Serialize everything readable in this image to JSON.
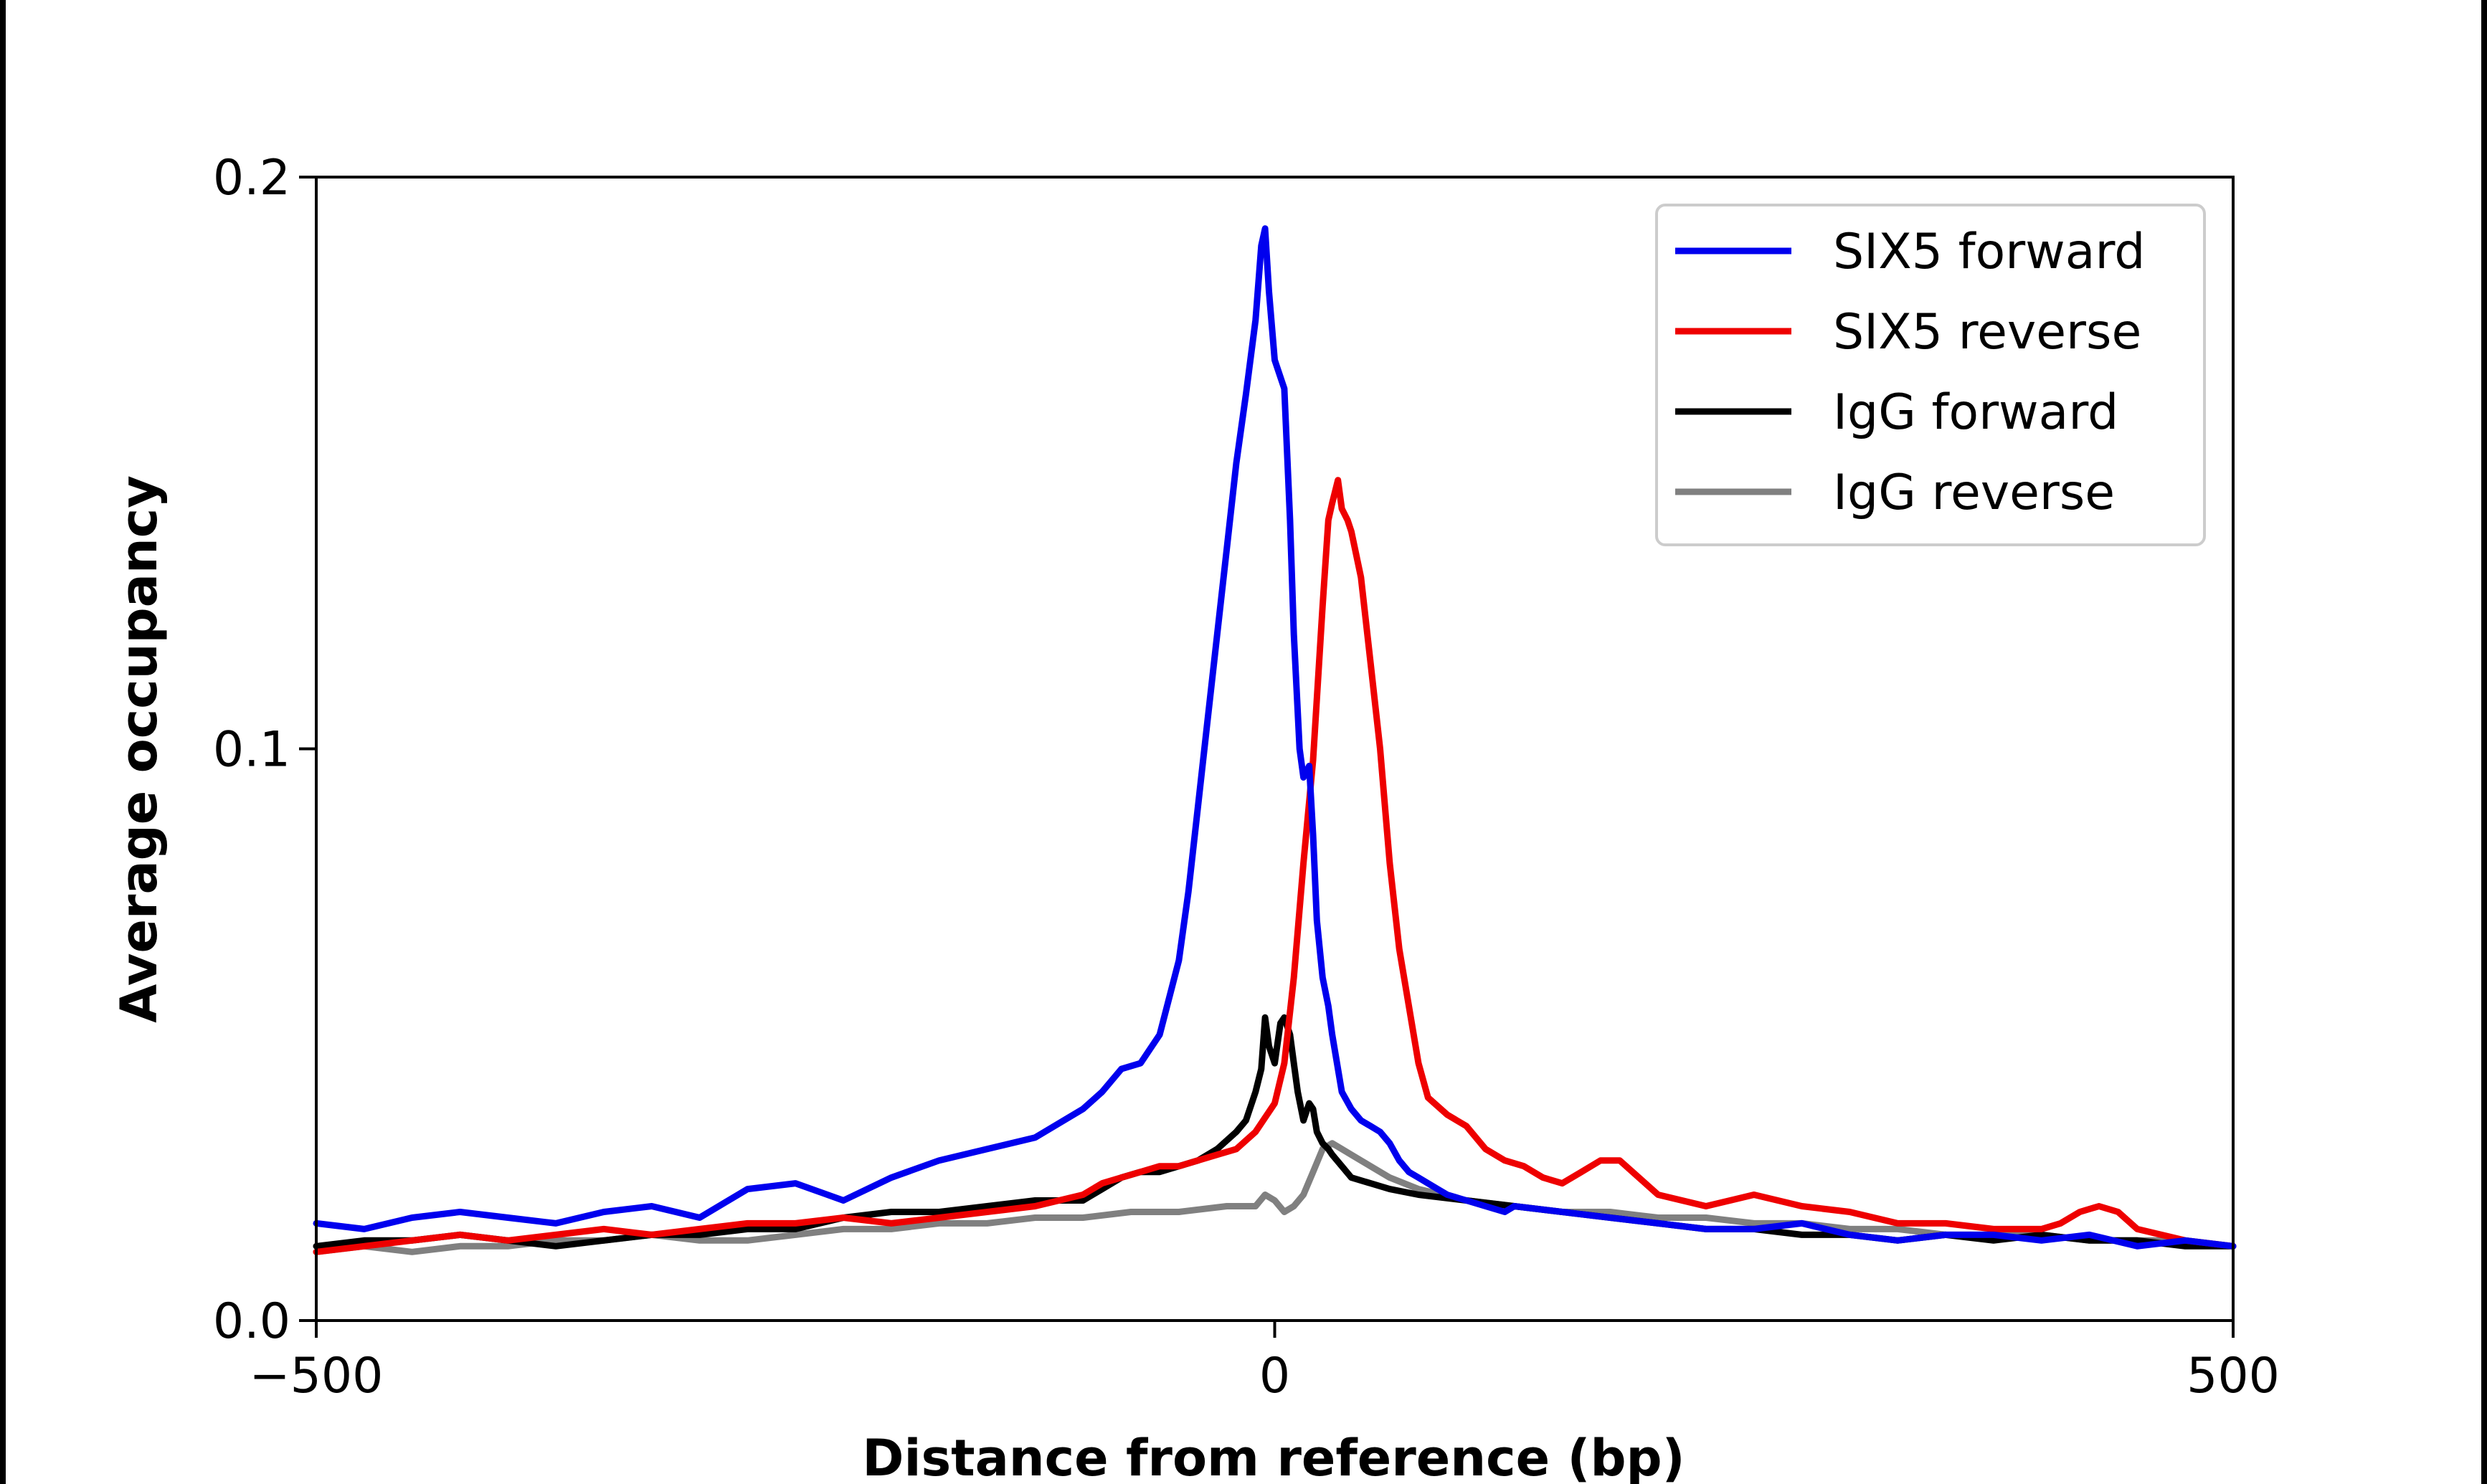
{
  "chart_data": {
    "type": "line",
    "xlabel": "Distance from reference (bp)",
    "ylabel": "Average occupancy",
    "xlim": [
      -500,
      500
    ],
    "ylim": [
      0,
      0.2
    ],
    "xticks": [
      -500,
      0,
      500
    ],
    "xtick_labels": [
      "−500",
      "0",
      "500"
    ],
    "yticks": [
      0.0,
      0.1,
      0.2
    ],
    "ytick_labels": [
      "0.0",
      "0.1",
      "0.2"
    ],
    "grid": false,
    "legend_position": "top-right",
    "series": [
      {
        "name": "SIX5 forward",
        "color": "#0000ee",
        "x": [
          -500,
          -475,
          -450,
          -425,
          -400,
          -375,
          -350,
          -325,
          -300,
          -275,
          -250,
          -225,
          -200,
          -175,
          -150,
          -125,
          -100,
          -90,
          -80,
          -70,
          -60,
          -50,
          -45,
          -40,
          -35,
          -30,
          -25,
          -20,
          -15,
          -10,
          -7,
          -5,
          -3,
          0,
          3,
          5,
          8,
          10,
          13,
          15,
          18,
          20,
          22,
          25,
          28,
          30,
          35,
          40,
          45,
          50,
          55,
          60,
          65,
          70,
          75,
          80,
          85,
          90,
          100,
          110,
          120,
          125,
          150,
          175,
          200,
          225,
          250,
          275,
          300,
          325,
          350,
          375,
          400,
          425,
          450,
          475,
          500
        ],
        "y": [
          0.017,
          0.016,
          0.018,
          0.019,
          0.018,
          0.017,
          0.019,
          0.02,
          0.018,
          0.023,
          0.024,
          0.021,
          0.025,
          0.028,
          0.03,
          0.032,
          0.037,
          0.04,
          0.044,
          0.045,
          0.05,
          0.063,
          0.075,
          0.09,
          0.105,
          0.12,
          0.135,
          0.15,
          0.162,
          0.175,
          0.188,
          0.191,
          0.18,
          0.168,
          0.165,
          0.163,
          0.14,
          0.12,
          0.1,
          0.095,
          0.097,
          0.085,
          0.07,
          0.06,
          0.055,
          0.05,
          0.04,
          0.037,
          0.035,
          0.034,
          0.033,
          0.031,
          0.028,
          0.026,
          0.025,
          0.024,
          0.023,
          0.022,
          0.021,
          0.02,
          0.019,
          0.02,
          0.019,
          0.018,
          0.017,
          0.016,
          0.016,
          0.017,
          0.015,
          0.014,
          0.015,
          0.015,
          0.014,
          0.015,
          0.013,
          0.014,
          0.013
        ]
      },
      {
        "name": "SIX5 reverse",
        "color": "#ee0000",
        "x": [
          -500,
          -475,
          -450,
          -425,
          -400,
          -375,
          -350,
          -325,
          -300,
          -275,
          -250,
          -225,
          -200,
          -175,
          -150,
          -125,
          -100,
          -90,
          -80,
          -70,
          -60,
          -50,
          -40,
          -30,
          -20,
          -10,
          0,
          5,
          10,
          15,
          20,
          25,
          28,
          30,
          33,
          35,
          38,
          40,
          45,
          50,
          55,
          60,
          65,
          70,
          75,
          80,
          90,
          100,
          110,
          120,
          130,
          140,
          150,
          160,
          170,
          180,
          190,
          200,
          225,
          250,
          275,
          300,
          325,
          350,
          375,
          400,
          410,
          420,
          430,
          440,
          450,
          475,
          500
        ],
        "y": [
          0.012,
          0.013,
          0.014,
          0.015,
          0.014,
          0.015,
          0.016,
          0.015,
          0.016,
          0.017,
          0.017,
          0.018,
          0.017,
          0.018,
          0.019,
          0.02,
          0.022,
          0.024,
          0.025,
          0.026,
          0.027,
          0.027,
          0.028,
          0.029,
          0.03,
          0.033,
          0.038,
          0.045,
          0.06,
          0.08,
          0.098,
          0.125,
          0.14,
          0.143,
          0.147,
          0.142,
          0.14,
          0.138,
          0.13,
          0.115,
          0.1,
          0.08,
          0.065,
          0.055,
          0.045,
          0.039,
          0.036,
          0.034,
          0.03,
          0.028,
          0.027,
          0.025,
          0.024,
          0.026,
          0.028,
          0.028,
          0.025,
          0.022,
          0.02,
          0.022,
          0.02,
          0.019,
          0.017,
          0.017,
          0.016,
          0.016,
          0.017,
          0.019,
          0.02,
          0.019,
          0.016,
          0.014,
          0.013
        ]
      },
      {
        "name": "IgG forward",
        "color": "#000000",
        "x": [
          -500,
          -475,
          -450,
          -425,
          -400,
          -375,
          -350,
          -325,
          -300,
          -275,
          -250,
          -225,
          -200,
          -175,
          -150,
          -125,
          -100,
          -90,
          -80,
          -70,
          -60,
          -50,
          -40,
          -30,
          -20,
          -15,
          -10,
          -7,
          -5,
          -3,
          0,
          3,
          5,
          8,
          10,
          12,
          15,
          18,
          20,
          22,
          25,
          28,
          30,
          35,
          40,
          50,
          60,
          75,
          100,
          125,
          150,
          175,
          200,
          225,
          250,
          275,
          300,
          325,
          350,
          375,
          400,
          425,
          450,
          475,
          500
        ],
        "y": [
          0.013,
          0.014,
          0.014,
          0.015,
          0.014,
          0.013,
          0.014,
          0.015,
          0.015,
          0.016,
          0.016,
          0.018,
          0.019,
          0.019,
          0.02,
          0.021,
          0.021,
          0.023,
          0.025,
          0.026,
          0.026,
          0.027,
          0.028,
          0.03,
          0.033,
          0.035,
          0.04,
          0.044,
          0.053,
          0.048,
          0.045,
          0.052,
          0.053,
          0.05,
          0.045,
          0.04,
          0.035,
          0.038,
          0.037,
          0.033,
          0.031,
          0.03,
          0.029,
          0.027,
          0.025,
          0.024,
          0.023,
          0.022,
          0.021,
          0.02,
          0.019,
          0.018,
          0.017,
          0.016,
          0.016,
          0.015,
          0.015,
          0.014,
          0.015,
          0.014,
          0.015,
          0.014,
          0.014,
          0.013,
          0.013
        ]
      },
      {
        "name": "IgG reverse",
        "color": "#808080",
        "x": [
          -500,
          -475,
          -450,
          -425,
          -400,
          -375,
          -350,
          -325,
          -300,
          -275,
          -250,
          -225,
          -200,
          -175,
          -150,
          -125,
          -100,
          -75,
          -50,
          -25,
          -10,
          -5,
          0,
          5,
          10,
          15,
          20,
          25,
          30,
          35,
          40,
          45,
          50,
          60,
          75,
          100,
          125,
          150,
          175,
          200,
          225,
          250,
          275,
          300,
          325,
          350,
          375,
          400,
          425,
          450,
          475,
          500
        ],
        "y": [
          0.012,
          0.013,
          0.012,
          0.013,
          0.013,
          0.014,
          0.014,
          0.015,
          0.014,
          0.014,
          0.015,
          0.016,
          0.016,
          0.017,
          0.017,
          0.018,
          0.018,
          0.019,
          0.019,
          0.02,
          0.02,
          0.022,
          0.021,
          0.019,
          0.02,
          0.022,
          0.026,
          0.03,
          0.031,
          0.03,
          0.029,
          0.028,
          0.027,
          0.025,
          0.023,
          0.021,
          0.02,
          0.019,
          0.019,
          0.018,
          0.018,
          0.017,
          0.017,
          0.016,
          0.016,
          0.015,
          0.015,
          0.015,
          0.014,
          0.014,
          0.014,
          0.013
        ]
      }
    ]
  }
}
